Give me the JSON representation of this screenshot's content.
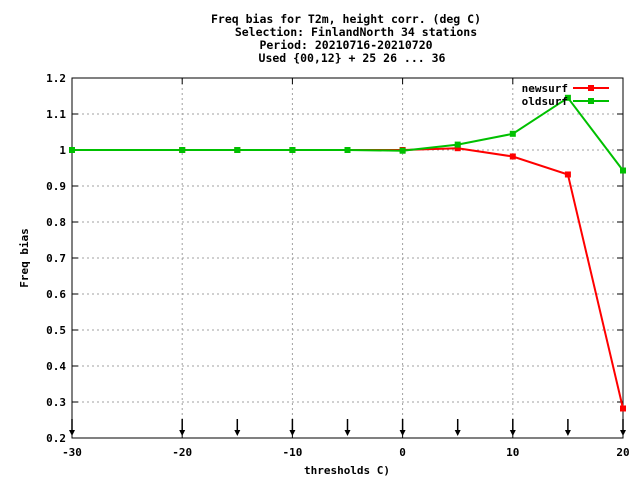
{
  "chart_data": {
    "type": "line",
    "title_lines": [
      "Freq bias  for T2m, height corr. (deg C)",
      "Selection: FinlandNorth     34 stations",
      "Period: 20210716-20210720",
      "Used {00,12} + 25 26 ... 36"
    ],
    "xlabel": "thresholds C)",
    "ylabel": "Freq bias",
    "xlim": [
      -30,
      20
    ],
    "ylim": [
      0.2,
      1.2
    ],
    "x_ticks": [
      -30,
      -20,
      -10,
      0,
      10,
      20
    ],
    "y_ticks": [
      0.2,
      0.3,
      0.4,
      0.5,
      0.6,
      0.7,
      0.8,
      0.9,
      1,
      1.1,
      1.2
    ],
    "x_tick_labels": [
      "-30",
      "-20",
      "-10",
      "0",
      "10",
      "20"
    ],
    "y_tick_labels": [
      "0.2",
      "0.3",
      "0.4",
      "0.5",
      "0.6",
      "0.7",
      "0.8",
      "0.9",
      "1",
      "1.1",
      "1.2"
    ],
    "grid": true,
    "legend_position": "top-right",
    "threshold_markers": [
      -30,
      -20,
      -15,
      -10,
      -5,
      0,
      5,
      10,
      15,
      20
    ],
    "series": [
      {
        "name": "newsurf",
        "color": "#ff0000",
        "x": [
          -30,
          -20,
          -15,
          -10,
          -5,
          0,
          5,
          10,
          15,
          20
        ],
        "y": [
          1.0,
          1.0,
          1.0,
          1.0,
          1.0,
          1.0,
          1.005,
          0.982,
          0.932,
          0.282
        ]
      },
      {
        "name": "oldsurf",
        "color": "#00c000",
        "x": [
          -30,
          -20,
          -15,
          -10,
          -5,
          0,
          5,
          10,
          15,
          20
        ],
        "y": [
          1.0,
          1.0,
          1.0,
          1.0,
          1.0,
          0.998,
          1.015,
          1.045,
          1.145,
          0.943
        ]
      }
    ]
  }
}
